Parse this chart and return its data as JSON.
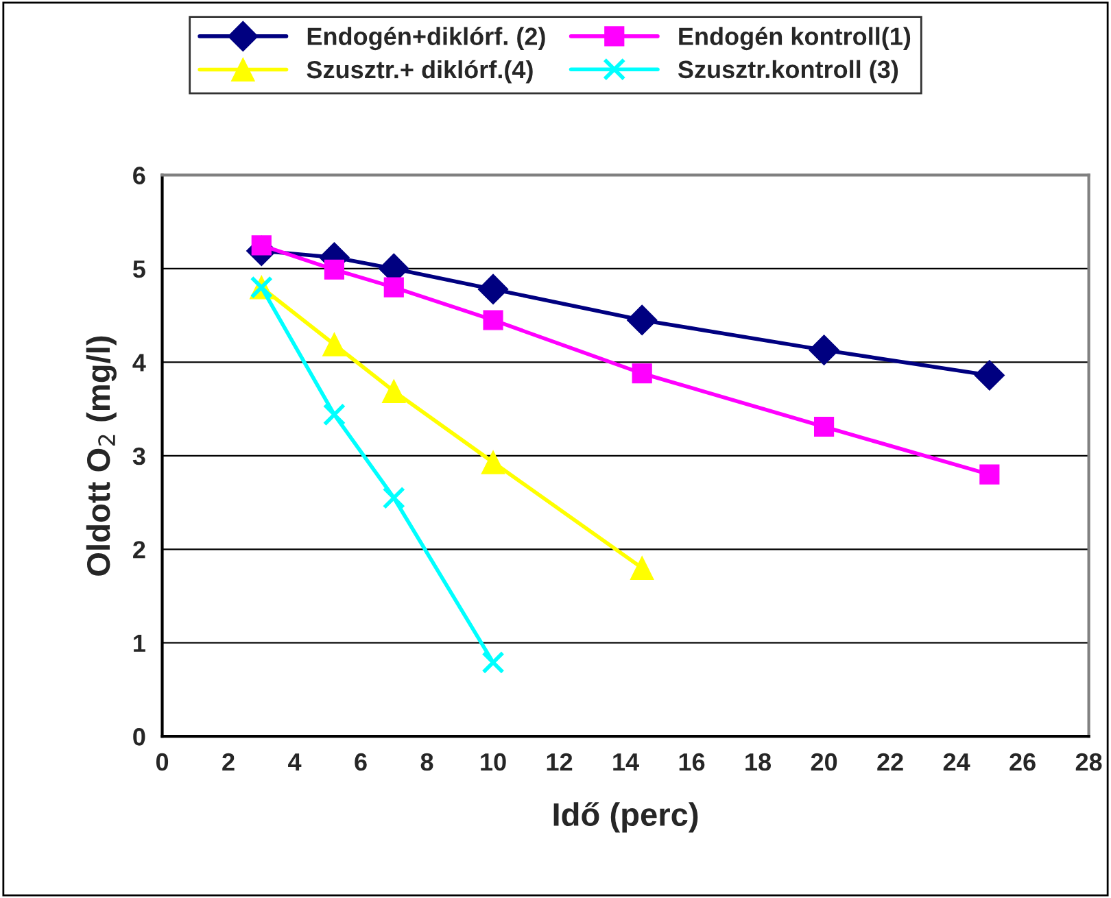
{
  "chart_data": {
    "type": "line",
    "xlabel": "Idő (perc)",
    "ylabel": "Oldott O$_{2}$ (mg/l)",
    "xlim": [
      0,
      28
    ],
    "xticks": [
      0,
      2,
      4,
      6,
      8,
      10,
      12,
      14,
      16,
      18,
      20,
      22,
      24,
      26,
      28
    ],
    "ylim": [
      0,
      6
    ],
    "yticks": [
      0,
      1,
      2,
      3,
      4,
      5,
      6
    ],
    "grid": "y",
    "legend": "top",
    "line_style": "solid",
    "series": [
      {
        "name": "Endogén+diklórf. (2)",
        "color": "#000080",
        "marker": "diamond",
        "x": [
          3,
          5.2,
          7,
          10,
          14.5,
          20,
          25
        ],
        "values": [
          5.19,
          5.12,
          5.0,
          4.78,
          4.45,
          4.13,
          3.86
        ]
      },
      {
        "name": "Endogén kontroll(1)",
        "color": "#ff00ff",
        "marker": "square",
        "x": [
          3,
          5.2,
          7,
          10,
          14.5,
          20,
          25
        ],
        "values": [
          5.25,
          4.99,
          4.8,
          4.45,
          3.88,
          3.31,
          2.8
        ]
      },
      {
        "name": "Szusztr.+ diklórf.(4)",
        "color": "#ffff00",
        "marker": "triangle",
        "x": [
          3,
          5.2,
          7,
          10,
          14.5
        ],
        "values": [
          4.8,
          4.19,
          3.69,
          2.93,
          1.8
        ]
      },
      {
        "name": "Szusztr.kontroll (3)",
        "color": "#00ffff",
        "marker": "cross",
        "x": [
          3,
          5.2,
          7,
          10
        ],
        "values": [
          4.8,
          3.44,
          2.55,
          0.79
        ]
      }
    ]
  }
}
